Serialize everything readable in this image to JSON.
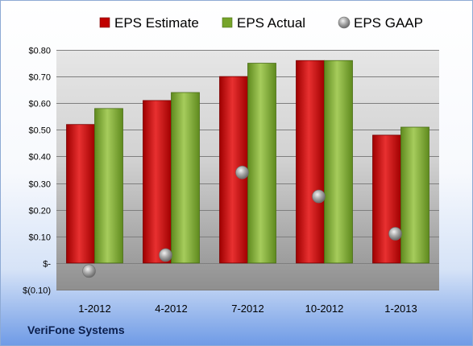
{
  "company": "VeriFone Systems",
  "chart_data": {
    "type": "bar",
    "categories": [
      "1-2012",
      "4-2012",
      "7-2012",
      "10-2012",
      "1-2013"
    ],
    "series": [
      {
        "name": "EPS Estimate",
        "kind": "bar",
        "color": "#c00000",
        "values": [
          0.52,
          0.61,
          0.7,
          0.76,
          0.48
        ]
      },
      {
        "name": "EPS Actual",
        "kind": "bar",
        "color": "#76a42a",
        "values": [
          0.58,
          0.64,
          0.75,
          0.76,
          0.51
        ]
      },
      {
        "name": "EPS GAAP",
        "kind": "marker",
        "color": "#8a8a8a",
        "values": [
          -0.03,
          0.03,
          0.34,
          0.25,
          0.11
        ]
      }
    ],
    "ylim": [
      -0.1,
      0.8
    ],
    "yticks": [
      {
        "value": 0.8,
        "label": "$0.80"
      },
      {
        "value": 0.7,
        "label": "$0.70"
      },
      {
        "value": 0.6,
        "label": "$0.60"
      },
      {
        "value": 0.5,
        "label": "$0.50"
      },
      {
        "value": 0.4,
        "label": "$0.40"
      },
      {
        "value": 0.3,
        "label": "$0.30"
      },
      {
        "value": 0.2,
        "label": "$0.20"
      },
      {
        "value": 0.1,
        "label": "$0.10"
      },
      {
        "value": 0.0,
        "label": "$-"
      },
      {
        "value": -0.1,
        "label": "$(0.10)"
      }
    ],
    "grid": true,
    "legend": "top"
  }
}
